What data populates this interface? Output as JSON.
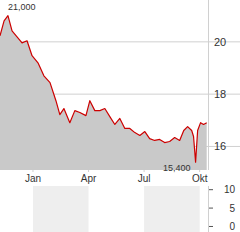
{
  "chart_data": [
    {
      "type": "line",
      "color": "#cc0000",
      "x": [
        -0.78,
        -0.56,
        -0.35,
        -0.13,
        0.14,
        0.41,
        0.68,
        0.95,
        1.27,
        1.59,
        1.92,
        2.24,
        2.45,
        2.67,
        2.99,
        3.26,
        3.53,
        3.86,
        4.07,
        4.34,
        4.61,
        4.88,
        5.15,
        5.42,
        5.69,
        5.96,
        6.23,
        6.5,
        6.77,
        7.04,
        7.3,
        7.57,
        7.84,
        8.11,
        8.38,
        8.65,
        8.92,
        9.14,
        9.35,
        9.57,
        9.67,
        9.78,
        9.89,
        10.05,
        10.21,
        10.38
      ],
      "values": [
        20.23,
        20.8,
        21.0,
        20.42,
        20.19,
        19.96,
        20.04,
        19.47,
        19.2,
        18.7,
        18.44,
        17.75,
        17.22,
        17.45,
        16.91,
        17.37,
        17.3,
        17.18,
        17.75,
        17.37,
        17.37,
        17.45,
        17.14,
        16.84,
        17.07,
        16.69,
        16.69,
        16.53,
        16.42,
        16.57,
        16.3,
        16.23,
        16.27,
        16.15,
        16.19,
        16.34,
        16.23,
        16.61,
        16.76,
        16.61,
        16.38,
        15.4,
        16.61,
        16.91,
        16.84,
        16.91
      ],
      "xlim": [
        -0.78,
        10.45
      ],
      "xticks": [
        {
          "value": 1,
          "label": "Jan"
        },
        {
          "value": 4,
          "label": "Apr"
        },
        {
          "value": 7,
          "label": "Jul"
        },
        {
          "value": 10,
          "label": "Okt"
        }
      ],
      "ylim": [
        15.1,
        21.6
      ],
      "yticks": [
        16,
        18,
        20
      ],
      "grid": true,
      "annotations": [
        {
          "text": "21,000",
          "x": -0.35,
          "y": 21.0
        },
        {
          "text": "15,400",
          "x": 9.78,
          "y": 15.4
        }
      ]
    },
    {
      "type": "bar",
      "values": [],
      "xlim": [
        -0.78,
        10.45
      ],
      "ylim": [
        -1.5,
        11
      ],
      "yticks": [
        0,
        5,
        10
      ]
    }
  ]
}
